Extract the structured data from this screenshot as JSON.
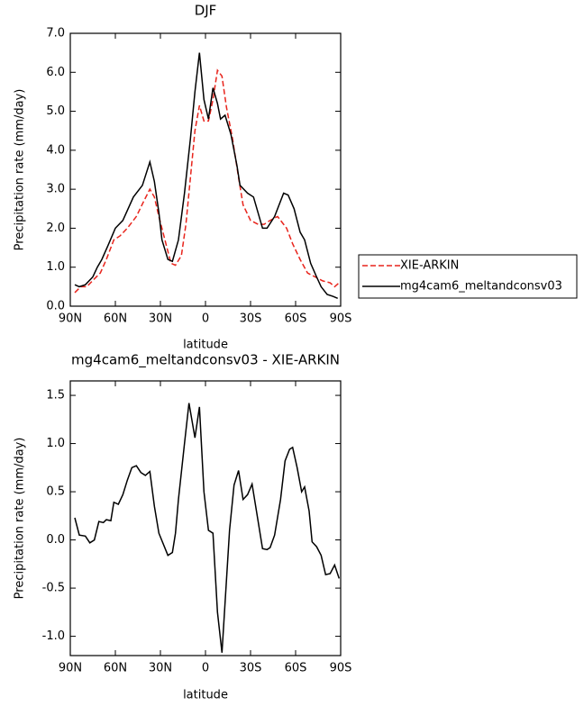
{
  "chart_data": [
    {
      "type": "line",
      "title": "DJF",
      "x_label": "latitude",
      "y_label": "Precipitation rate (mm/day)",
      "xlim": [
        90,
        -90
      ],
      "ylim": [
        0,
        7
      ],
      "xticks": [
        {
          "value": 90,
          "label": "90N"
        },
        {
          "value": 60,
          "label": "60N"
        },
        {
          "value": 30,
          "label": "30N"
        },
        0,
        {
          "value": -30,
          "label": "30S"
        },
        {
          "value": -60,
          "label": "60S"
        },
        {
          "value": -90,
          "label": "90S"
        }
      ],
      "yticks": [
        {
          "value": 0,
          "label": "0.0"
        },
        {
          "value": 1,
          "label": "1.0"
        },
        {
          "value": 2,
          "label": "2.0"
        },
        {
          "value": 3,
          "label": "3.0"
        },
        {
          "value": 4,
          "label": "4.0"
        },
        {
          "value": 5,
          "label": "5.0"
        },
        {
          "value": 6,
          "label": "6.0"
        },
        {
          "value": 7,
          "label": "7.0"
        }
      ],
      "series": [
        {
          "name": "XIE-ARKIN",
          "color": "#e8241c",
          "linestyle": "dashed",
          "x": [
            87,
            83,
            79,
            74,
            70,
            66,
            61,
            57,
            52,
            46,
            41,
            37,
            34,
            31,
            27,
            23,
            20,
            16,
            13,
            10,
            7,
            4,
            1,
            -2,
            -5,
            -8,
            -11,
            -14,
            -18,
            -22,
            -25,
            -30,
            -35,
            -39,
            -43,
            -48,
            -54,
            -58,
            -63,
            -68,
            -73,
            -78,
            -83,
            -86,
            -89
          ],
          "values": [
            0.35,
            0.5,
            0.5,
            0.7,
            0.85,
            1.2,
            1.7,
            1.8,
            2.0,
            2.3,
            2.7,
            3.0,
            2.8,
            2.3,
            1.7,
            1.1,
            1.05,
            1.3,
            2.1,
            3.3,
            4.5,
            5.15,
            4.75,
            4.75,
            5.3,
            6.05,
            5.9,
            5.1,
            4.3,
            3.3,
            2.6,
            2.2,
            2.1,
            2.1,
            2.2,
            2.3,
            2.0,
            1.6,
            1.2,
            0.85,
            0.75,
            0.65,
            0.6,
            0.5,
            0.6
          ]
        },
        {
          "name": "mg4cam6_meltandconsv03",
          "color": "#000000",
          "linestyle": "solid",
          "x": [
            87,
            84,
            80,
            75,
            72,
            69,
            65,
            60,
            55,
            48,
            42,
            37,
            34,
            31,
            29,
            25,
            22,
            18,
            14,
            10,
            7,
            4,
            1,
            -2,
            -5,
            -8,
            -10,
            -13,
            -17,
            -21,
            -23,
            -28,
            -32,
            -38,
            -41,
            -46,
            -52,
            -55,
            -59,
            -63,
            -66,
            -70,
            -74,
            -77,
            -81,
            -85,
            -88
          ],
          "values": [
            0.55,
            0.5,
            0.55,
            0.75,
            1.0,
            1.2,
            1.55,
            2.0,
            2.2,
            2.8,
            3.1,
            3.7,
            3.2,
            2.4,
            1.7,
            1.2,
            1.15,
            1.7,
            2.9,
            4.3,
            5.5,
            6.5,
            5.3,
            4.8,
            5.6,
            5.2,
            4.8,
            4.9,
            4.4,
            3.6,
            3.1,
            2.9,
            2.8,
            2.0,
            2.0,
            2.3,
            2.9,
            2.85,
            2.5,
            1.9,
            1.7,
            1.1,
            0.75,
            0.5,
            0.3,
            0.25,
            0.2
          ]
        }
      ]
    },
    {
      "type": "line",
      "title": "mg4cam6_meltandconsv03 - XIE-ARKIN",
      "x_label": "latitude",
      "y_label": "Precipitation rate (mm/day)",
      "xlim": [
        90,
        -90
      ],
      "ylim": [
        -1.2,
        1.65
      ],
      "xticks": [
        {
          "value": 90,
          "label": "90N"
        },
        {
          "value": 60,
          "label": "60N"
        },
        {
          "value": 30,
          "label": "30N"
        },
        0,
        {
          "value": -30,
          "label": "30S"
        },
        {
          "value": -60,
          "label": "60S"
        },
        {
          "value": -90,
          "label": "90S"
        }
      ],
      "yticks": [
        {
          "value": -1,
          "label": "-1.0"
        },
        -0.5,
        {
          "value": 0,
          "label": "0.0"
        },
        0.5,
        {
          "value": 1,
          "label": "1.0"
        },
        1.5
      ],
      "series": [
        {
          "color": "#000000",
          "linestyle": "solid",
          "x": [
            87,
            84,
            80,
            77,
            74,
            71,
            68,
            66,
            63,
            61,
            58,
            55,
            52,
            49,
            46,
            43,
            40,
            37,
            34,
            31,
            25,
            22,
            20,
            18,
            14,
            11,
            7,
            4,
            1,
            -2,
            -5,
            -8,
            -11,
            -16,
            -19,
            -22,
            -25,
            -28,
            -31,
            -35,
            -38,
            -41,
            -43,
            -46,
            -50,
            -53,
            -56,
            -58,
            -61,
            -64,
            -66,
            -69,
            -71,
            -74,
            -77,
            -80,
            -83,
            -86,
            -89
          ],
          "values": [
            0.23,
            0.05,
            0.04,
            -0.03,
            0.0,
            0.19,
            0.18,
            0.21,
            0.2,
            0.39,
            0.37,
            0.47,
            0.62,
            0.75,
            0.77,
            0.7,
            0.67,
            0.71,
            0.35,
            0.07,
            -0.16,
            -0.13,
            0.07,
            0.42,
            1.0,
            1.42,
            1.06,
            1.38,
            0.5,
            0.1,
            0.07,
            -0.75,
            -1.17,
            0.1,
            0.57,
            0.72,
            0.42,
            0.47,
            0.58,
            0.2,
            -0.09,
            -0.1,
            -0.08,
            0.05,
            0.42,
            0.82,
            0.94,
            0.96,
            0.75,
            0.5,
            0.55,
            0.3,
            -0.02,
            -0.07,
            -0.16,
            -0.36,
            -0.35,
            -0.26,
            -0.4
          ]
        }
      ]
    }
  ]
}
